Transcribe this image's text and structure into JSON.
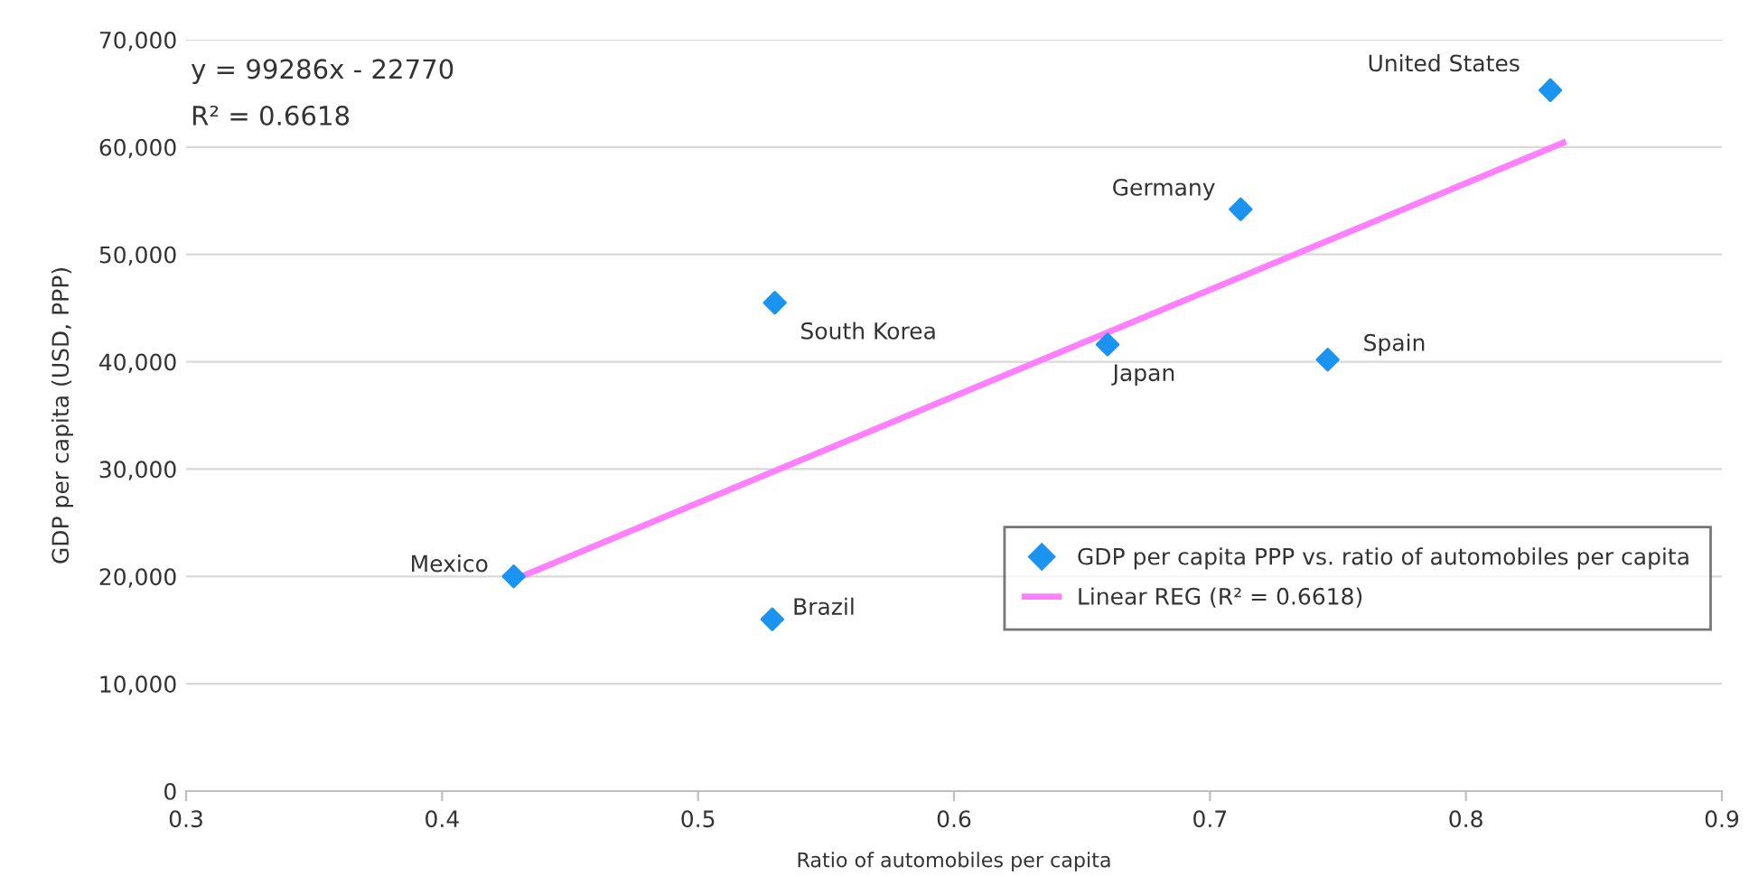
{
  "chart_data": {
    "type": "scatter",
    "xlabel": "Ratio of automobiles per capita",
    "ylabel": "GDP per capita (USD, PPP)",
    "xlim": [
      0.3,
      0.9
    ],
    "xticks": [
      0.3,
      0.4,
      0.5,
      0.6,
      0.7,
      0.8,
      0.9
    ],
    "ylim": [
      0,
      70000
    ],
    "yticks": [
      {
        "value": 0,
        "label": "0"
      },
      {
        "value": 10000,
        "label": "10,000"
      },
      {
        "value": 20000,
        "label": "20,000"
      },
      {
        "value": 30000,
        "label": "30,000"
      },
      {
        "value": 40000,
        "label": "40,000"
      },
      {
        "value": 50000,
        "label": "50,000"
      },
      {
        "value": 60000,
        "label": "60,000"
      },
      {
        "value": 70000,
        "label": "70,000"
      }
    ],
    "grid": "y",
    "legend": "bottom right",
    "series": [
      {
        "name": "GDP per capita PPP vs. ratio of automobiles per capita",
        "marker": "diamond",
        "color": "#1a94f0",
        "x": [
          0.428,
          0.529,
          0.53,
          0.66,
          0.712,
          0.746,
          0.833
        ],
        "values": [
          20000,
          16000,
          45500,
          41600,
          54200,
          40200,
          65300
        ]
      },
      {
        "name": "Linear REG (R² = 0.6618)",
        "type": "line",
        "line_style": "solid",
        "color": "#ff80ff",
        "x": [
          0.428,
          0.838
        ],
        "values": [
          19700,
          60400
        ]
      }
    ],
    "annotations": [
      "y = 99286x - 22770",
      "R² = 0.6618",
      {
        "text": "Mexico",
        "x": 0.428,
        "y": 20000
      },
      {
        "text": "Brazil",
        "x": 0.529,
        "y": 16000
      },
      {
        "text": "South Korea",
        "x": 0.53,
        "y": 45500
      },
      {
        "text": "Japan",
        "x": 0.66,
        "y": 41600
      },
      {
        "text": "Germany",
        "x": 0.712,
        "y": 54200
      },
      {
        "text": "Spain",
        "x": 0.746,
        "y": 40200
      },
      {
        "text": "United States",
        "x": 0.833,
        "y": 65300
      }
    ]
  }
}
